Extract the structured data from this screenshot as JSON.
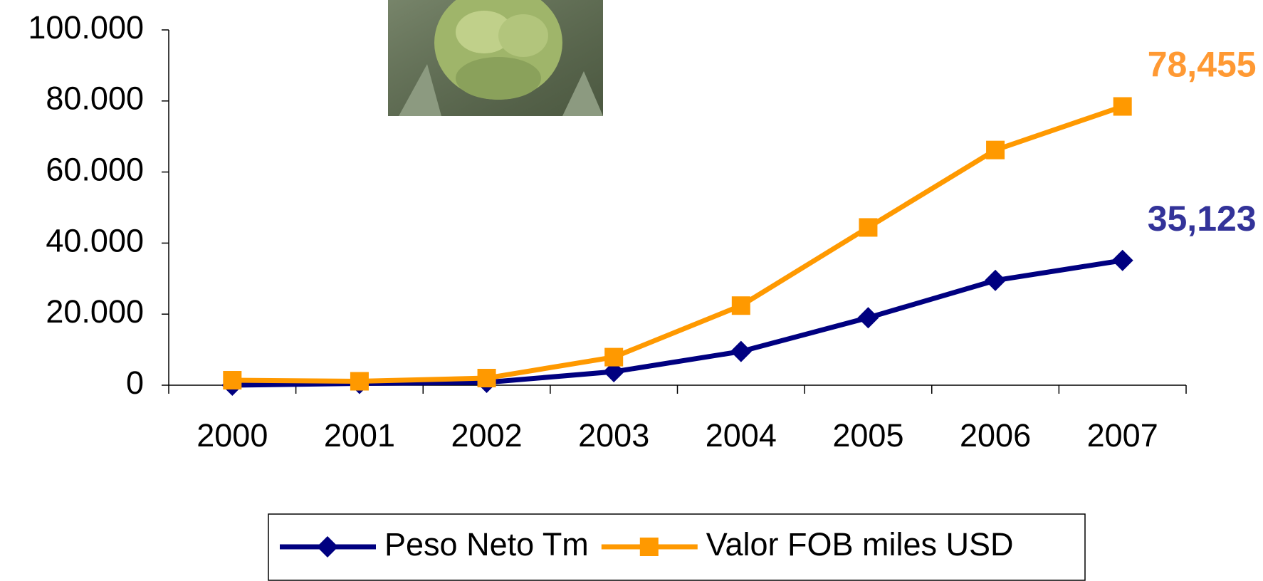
{
  "chart_data": {
    "type": "line",
    "categories": [
      "2000",
      "2001",
      "2002",
      "2003",
      "2004",
      "2005",
      "2006",
      "2007"
    ],
    "series": [
      {
        "name": "Peso Neto Tm",
        "color": "#000080",
        "marker": "diamond",
        "label_color": "#333399",
        "values": [
          0,
          500,
          800,
          3800,
          9500,
          19000,
          29500,
          35123
        ],
        "value_labels": [
          null,
          null,
          null,
          null,
          null,
          null,
          null,
          "35,123"
        ]
      },
      {
        "name": "Valor FOB miles USD",
        "color": "#ff9900",
        "marker": "square",
        "label_color": "#ff9933",
        "values": [
          1400,
          1100,
          2000,
          7900,
          22400,
          44400,
          66200,
          78455
        ],
        "value_labels": [
          null,
          null,
          null,
          null,
          null,
          null,
          null,
          "78,455"
        ]
      }
    ],
    "ylim": [
      0,
      100000
    ],
    "yticks": [
      0,
      {
        "value": 20000,
        "label": "20.000"
      },
      {
        "value": 40000,
        "label": "40.000"
      },
      {
        "value": 60000,
        "label": "60.000"
      },
      {
        "value": 80000,
        "label": "80.000"
      },
      {
        "value": 100000,
        "label": "100.000"
      }
    ],
    "grid": false
  }
}
